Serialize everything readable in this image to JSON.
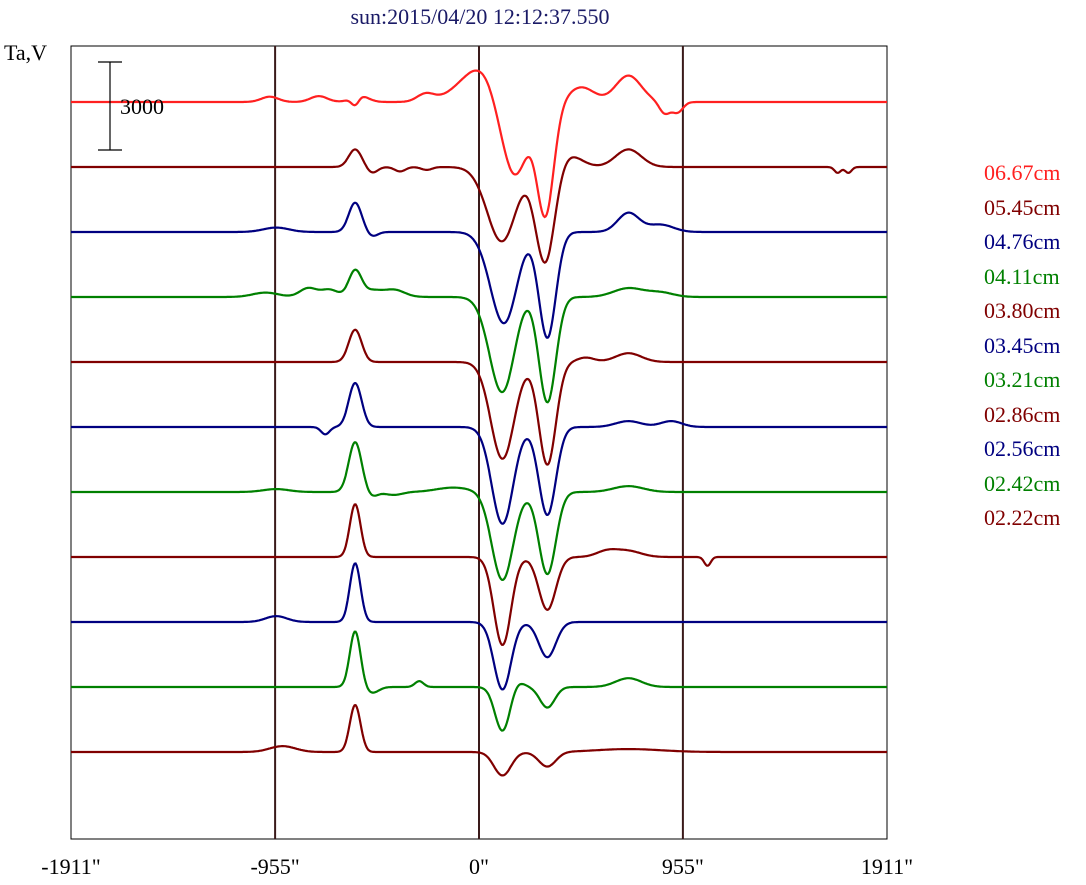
{
  "title": "sun:2015/04/20 12:12:37.550",
  "ylabel": "Ta,V",
  "colors": {
    "red": "#ff2020",
    "darkred": "#800000",
    "navy": "#000080",
    "green": "#008000",
    "frame": "#000000",
    "gridline": "#3a1a1a"
  },
  "chart_data": {
    "type": "line",
    "title": "sun:2015/04/20 12:12:37.550",
    "ylabel": "Ta,V",
    "xlabel": "",
    "x_ticks": [
      -1911,
      -955,
      0,
      955,
      1911
    ],
    "x_tick_labels": [
      "-1911\"",
      "-955\"",
      "0\"",
      "955\"",
      "1911\""
    ],
    "xlim": [
      -1911,
      1911
    ],
    "scale_bar": {
      "label": "3000",
      "value": 3000
    },
    "vertical_lines": [
      -955,
      0,
      955
    ],
    "legend_placement": "right",
    "series": [
      {
        "name": "06.67cm",
        "color": "#ff2020",
        "baseline_offset": 0,
        "features": [
          [
            -980,
            180,
            40
          ],
          [
            -750,
            200,
            40
          ],
          [
            -560,
            220,
            40
          ],
          [
            -250,
            260,
            40
          ],
          [
            -580,
            -300,
            18
          ],
          [
            35,
            1350,
            110
          ],
          [
            175,
            -3600,
            75
          ],
          [
            250,
            1200,
            60
          ],
          [
            310,
            -4000,
            40
          ],
          [
            480,
            500,
            60
          ],
          [
            700,
            900,
            60
          ],
          [
            870,
            -400,
            25
          ],
          [
            930,
            -350,
            25
          ]
        ]
      },
      {
        "name": "05.45cm",
        "color": "#800000",
        "baseline_offset": 1,
        "features": [
          [
            -580,
            600,
            30
          ],
          [
            -500,
            -200,
            25
          ],
          [
            -370,
            -150,
            25
          ],
          [
            -245,
            -100,
            25
          ],
          [
            110,
            -2600,
            70
          ],
          [
            190,
            250,
            50
          ],
          [
            310,
            -3300,
            45
          ],
          [
            420,
            400,
            60
          ],
          [
            700,
            600,
            60
          ],
          [
            1680,
            -200,
            15
          ],
          [
            1730,
            -200,
            15
          ]
        ]
      },
      {
        "name": "04.76cm",
        "color": "#000080",
        "baseline_offset": 2,
        "features": [
          [
            -950,
            150,
            60
          ],
          [
            -580,
            1000,
            30
          ],
          [
            -500,
            -150,
            25
          ],
          [
            120,
            -3200,
            65
          ],
          [
            200,
            350,
            50
          ],
          [
            320,
            -3600,
            40
          ],
          [
            700,
            650,
            50
          ],
          [
            850,
            250,
            60
          ]
        ]
      },
      {
        "name": "04.11cm",
        "color": "#008000",
        "baseline_offset": 3,
        "features": [
          [
            -1000,
            150,
            60
          ],
          [
            -800,
            300,
            40
          ],
          [
            -700,
            250,
            40
          ],
          [
            -580,
            900,
            30
          ],
          [
            -500,
            200,
            40
          ],
          [
            -400,
            250,
            50
          ],
          [
            110,
            -3300,
            60
          ],
          [
            200,
            300,
            50
          ],
          [
            320,
            -3600,
            40
          ],
          [
            700,
            300,
            70
          ],
          [
            850,
            150,
            60
          ]
        ]
      },
      {
        "name": "03.80cm",
        "color": "#800000",
        "baseline_offset": 4,
        "features": [
          [
            -580,
            1100,
            30
          ],
          [
            110,
            -3300,
            55
          ],
          [
            320,
            -3500,
            40
          ],
          [
            500,
            150,
            40
          ],
          [
            700,
            300,
            60
          ]
        ]
      },
      {
        "name": "03.45cm",
        "color": "#000080",
        "baseline_offset": 5,
        "features": [
          [
            -720,
            -250,
            20
          ],
          [
            -580,
            1500,
            30
          ],
          [
            110,
            -3300,
            50
          ],
          [
            320,
            -3000,
            40
          ],
          [
            700,
            200,
            60
          ],
          [
            900,
            200,
            50
          ]
        ]
      },
      {
        "name": "03.21cm",
        "color": "#008000",
        "baseline_offset": 6,
        "features": [
          [
            -950,
            100,
            60
          ],
          [
            -580,
            1700,
            30
          ],
          [
            -500,
            -150,
            25
          ],
          [
            -400,
            -100,
            40
          ],
          [
            -120,
            150,
            80
          ],
          [
            110,
            -3000,
            50
          ],
          [
            320,
            -2800,
            40
          ],
          [
            700,
            200,
            70
          ]
        ]
      },
      {
        "name": "02.86cm",
        "color": "#800000",
        "baseline_offset": 7,
        "features": [
          [
            -580,
            1800,
            25
          ],
          [
            110,
            -3000,
            40
          ],
          [
            320,
            -1800,
            40
          ],
          [
            600,
            200,
            50
          ],
          [
            700,
            200,
            60
          ],
          [
            1070,
            -300,
            15
          ]
        ]
      },
      {
        "name": "02.56cm",
        "color": "#000080",
        "baseline_offset": 8,
        "features": [
          [
            -950,
            200,
            50
          ],
          [
            -580,
            2000,
            25
          ],
          [
            110,
            -2300,
            40
          ],
          [
            320,
            -1200,
            40
          ]
        ]
      },
      {
        "name": "02.42cm",
        "color": "#008000",
        "baseline_offset": 9,
        "features": [
          [
            -580,
            1900,
            25
          ],
          [
            -500,
            -200,
            30
          ],
          [
            -280,
            200,
            20
          ],
          [
            110,
            -1500,
            35
          ],
          [
            180,
            200,
            30
          ],
          [
            320,
            -700,
            35
          ],
          [
            700,
            300,
            60
          ]
        ]
      },
      {
        "name": "02.22cm",
        "color": "#800000",
        "baseline_offset": 10,
        "features": [
          [
            -920,
            200,
            60
          ],
          [
            -580,
            1600,
            25
          ],
          [
            110,
            -800,
            40
          ],
          [
            320,
            -500,
            40
          ],
          [
            700,
            100,
            150
          ]
        ]
      }
    ]
  }
}
